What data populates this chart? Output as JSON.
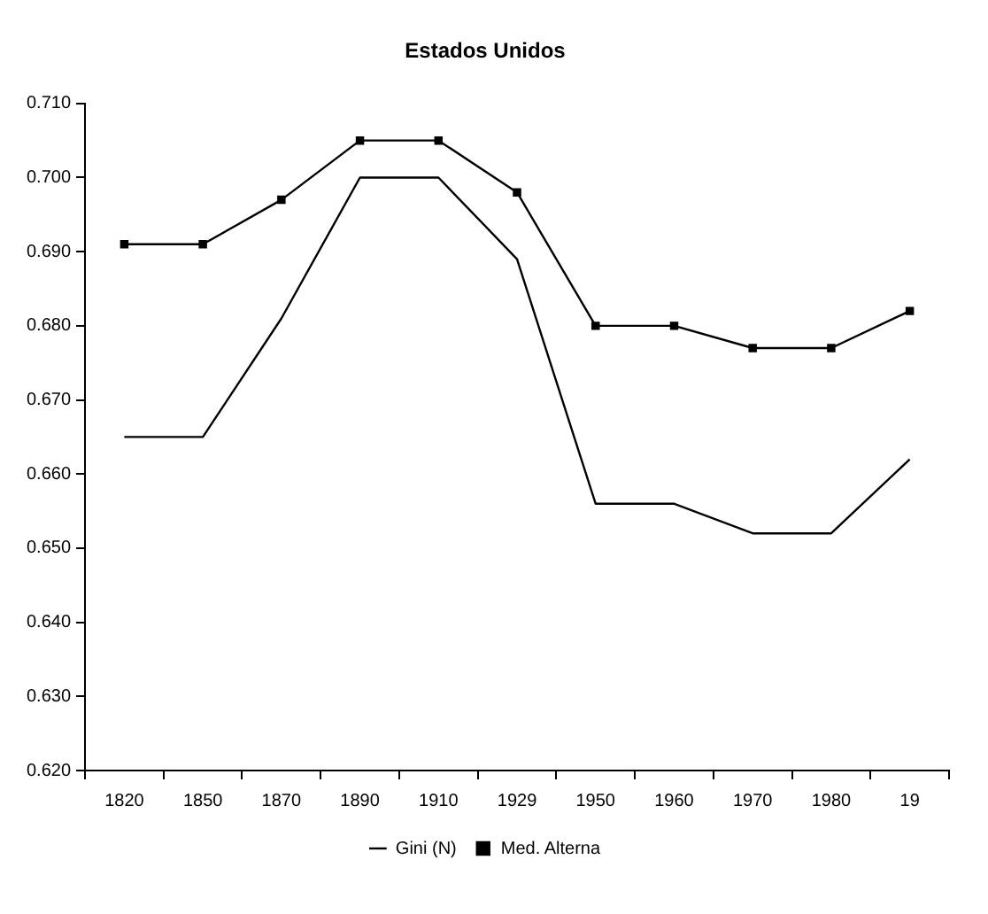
{
  "chart_data": {
    "type": "line",
    "title": "Estados Unidos",
    "categories": [
      "1820",
      "1850",
      "1870",
      "1890",
      "1910",
      "1929",
      "1950",
      "1960",
      "1970",
      "1980",
      "19"
    ],
    "series": [
      {
        "name": "Gini (N)",
        "color": "#000000",
        "marker": "none",
        "values": [
          0.665,
          0.665,
          0.681,
          0.7,
          0.7,
          0.689,
          0.656,
          0.656,
          0.652,
          0.652,
          0.662
        ]
      },
      {
        "name": "Med. Alterna",
        "color": "#000000",
        "marker": "square",
        "values": [
          0.691,
          0.691,
          0.697,
          0.705,
          0.705,
          0.698,
          0.68,
          0.68,
          0.677,
          0.677,
          0.682
        ]
      }
    ],
    "ylim": [
      0.62,
      0.71
    ],
    "yticks": [
      {
        "value": 0.62,
        "label": "0.620"
      },
      {
        "value": 0.63,
        "label": "0.630"
      },
      {
        "value": 0.64,
        "label": "0.640"
      },
      {
        "value": 0.65,
        "label": "0.650"
      },
      {
        "value": 0.66,
        "label": "0.660"
      },
      {
        "value": 0.67,
        "label": "0.670"
      },
      {
        "value": 0.68,
        "label": "0.680"
      },
      {
        "value": 0.69,
        "label": "0.690"
      },
      {
        "value": 0.7,
        "label": "0.700"
      },
      {
        "value": 0.71,
        "label": "0.710"
      }
    ],
    "grid": false,
    "legend": "bottom",
    "line_style": "solid"
  }
}
